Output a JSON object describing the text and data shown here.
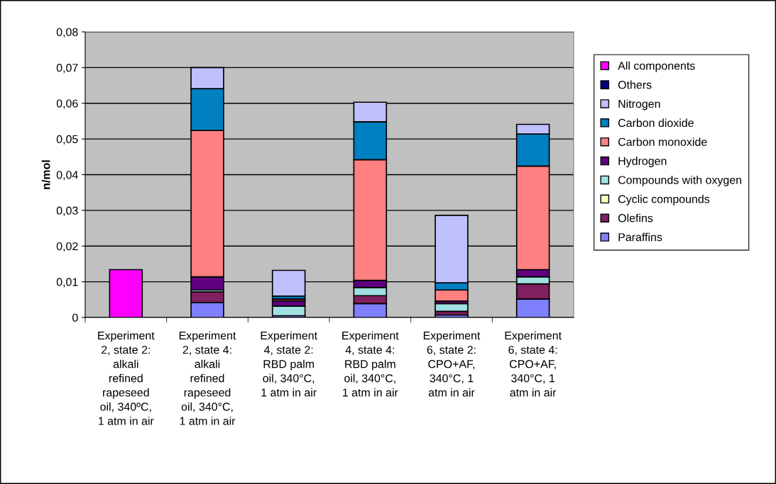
{
  "chart_data": {
    "type": "bar",
    "stacked": true,
    "ylabel": "n/mol",
    "categories": [
      "Experiment\n2, state 2:\nalkali\nrefined\nrapeseed\noil, 340ºC,\n1 atm in air",
      "Experiment\n2, state 4:\nalkali\nrefined\nrapeseed\noil, 340°C,\n1 atm in air",
      "Experiment\n4, state 2:\nRBD palm\noil, 340°C,\n1 atm in air",
      "Experiment\n4, state 4:\nRBD palm\noil, 340°C,\n1 atm in air",
      "Experiment\n6, state 2:\nCPO+AF,\n340°C, 1\natm in air",
      "Experiment\n6, state 4:\nCPO+AF,\n340°C, 1\natm in air"
    ],
    "series": [
      {
        "name": "Paraffins",
        "color": "#8080ff",
        "values": [
          null,
          0.0042,
          0.0005,
          0.0039,
          0.0007,
          0.0052
        ]
      },
      {
        "name": "Olefins",
        "color": "#802060",
        "values": [
          null,
          0.003,
          null,
          0.0022,
          0.001,
          0.0042
        ]
      },
      {
        "name": "Cyclic compounds",
        "color": "#ffffc0",
        "values": [
          null,
          0,
          0,
          0,
          0,
          0
        ]
      },
      {
        "name": "Compounds with oxygen",
        "color": "#a0e0e0",
        "values": [
          null,
          0.0005,
          0.0027,
          0.0023,
          0.0022,
          0.002
        ]
      },
      {
        "name": "Hydrogen",
        "color": "#600080",
        "values": [
          null,
          0.0037,
          0.0015,
          0.002,
          0.0007,
          0.002
        ]
      },
      {
        "name": "Carbon monoxide",
        "color": "#ff8080",
        "values": [
          null,
          0.041,
          0.0005,
          0.0338,
          0.0031,
          0.029
        ]
      },
      {
        "name": "Carbon dioxide",
        "color": "#0080c0",
        "values": [
          null,
          0.0117,
          0.0008,
          0.0106,
          0.002,
          0.009
        ]
      },
      {
        "name": "Nitrogen",
        "color": "#c0c0ff",
        "values": [
          null,
          0.0059,
          0.0072,
          0.0055,
          0.0189,
          0.0027
        ]
      },
      {
        "name": "Others",
        "color": "#000080",
        "values": [
          null,
          0,
          0,
          0,
          0,
          0
        ]
      },
      {
        "name": "All components",
        "color": "#ff00ff",
        "values": [
          0.0134,
          null,
          null,
          null,
          null,
          null
        ]
      }
    ],
    "ylim": [
      0,
      0.08
    ],
    "yticks": [
      0,
      {
        "value": 0.01,
        "label": "0,01"
      },
      {
        "value": 0.02,
        "label": "0,02"
      },
      {
        "value": 0.03,
        "label": "0,03"
      },
      {
        "value": 0.04,
        "label": "0,04"
      },
      {
        "value": 0.05,
        "label": "0,05"
      },
      {
        "value": 0.06,
        "label": "0,06"
      },
      {
        "value": 0.07,
        "label": "0,07"
      },
      {
        "value": 0.08,
        "label": "0,08"
      }
    ],
    "grid": "y",
    "legend": "right"
  }
}
